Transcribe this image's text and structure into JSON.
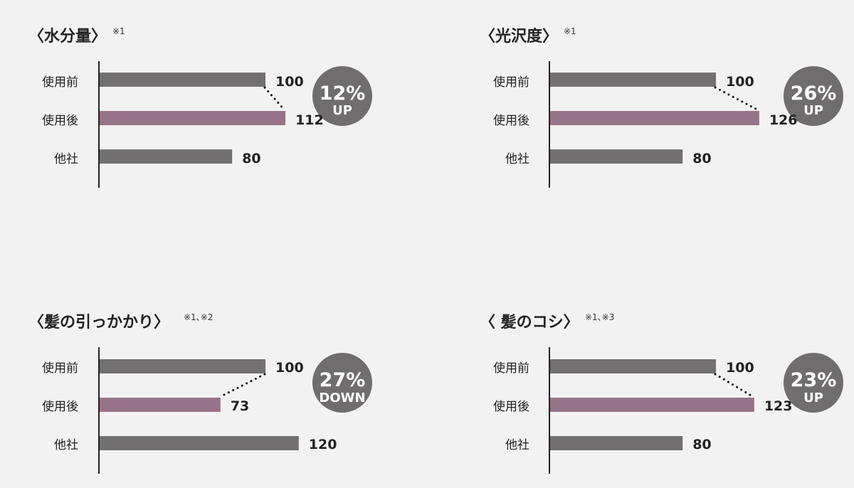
{
  "colors": {
    "background": "#f3f2f2",
    "bar_gray": "#737071",
    "bar_highlight": "#977387",
    "axis": "#222222",
    "badge": "#6f6d6e"
  },
  "chart_data": [
    {
      "type": "bar",
      "title": "〈水分量〉",
      "note": "※1",
      "categories": [
        "使用前",
        "使用後",
        "他社"
      ],
      "values": [
        100,
        112,
        80
      ],
      "highlight_index": 1,
      "badge": {
        "percent": "12%",
        "direction": "UP"
      }
    },
    {
      "type": "bar",
      "title": "〈光沢度〉",
      "note": "※1",
      "categories": [
        "使用前",
        "使用後",
        "他社"
      ],
      "values": [
        100,
        126,
        80
      ],
      "highlight_index": 1,
      "badge": {
        "percent": "26%",
        "direction": "UP"
      }
    },
    {
      "type": "bar",
      "title": "〈髪の引っかかり〉",
      "note": "※1､※2",
      "categories": [
        "使用前",
        "使用後",
        "他社"
      ],
      "values": [
        100,
        73,
        120
      ],
      "highlight_index": 1,
      "badge": {
        "percent": "27%",
        "direction": "DOWN"
      }
    },
    {
      "type": "bar",
      "title": "〈 髪のコシ〉",
      "note": "※1､※3",
      "categories": [
        "使用前",
        "使用後",
        "他社"
      ],
      "values": [
        100,
        123,
        80
      ],
      "highlight_index": 1,
      "badge": {
        "percent": "23%",
        "direction": "UP"
      }
    }
  ]
}
